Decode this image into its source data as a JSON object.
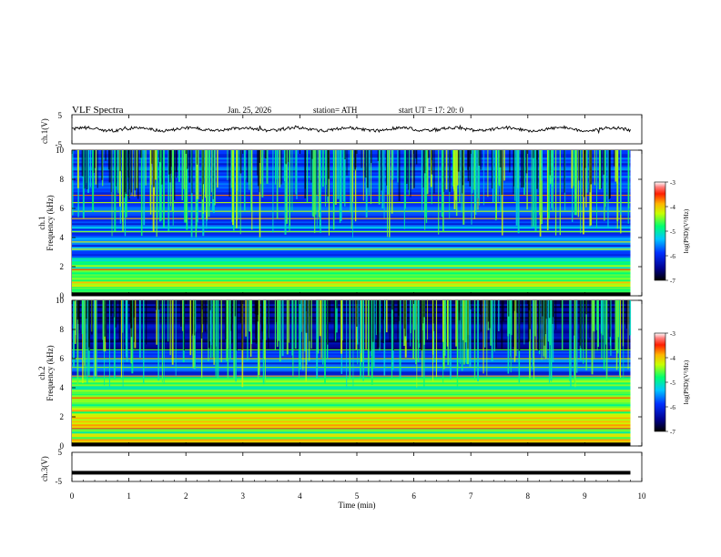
{
  "header": {
    "title": "VLF  Spectra",
    "date": "Jan. 25, 2026",
    "station": "station= ATH",
    "start": "start  UT  =   17: 20: 0"
  },
  "chart_data": [
    {
      "type": "line",
      "panel": "waveform-ch1",
      "ylabel": "ch.1(V)",
      "ylim": [
        -5,
        5
      ],
      "ytick_labels": [
        "5",
        "-5"
      ],
      "xlim": [
        0,
        10
      ],
      "color": "#000000"
    },
    {
      "type": "heatmap",
      "panel": "spectrogram-ch1",
      "ylabel": [
        "ch.1",
        "Frequency  (kHz)"
      ],
      "ylim": [
        0,
        10
      ],
      "yticks": [
        0,
        2,
        4,
        6,
        8,
        10
      ],
      "xlim": [
        0,
        10
      ],
      "x_data_end": 9.8,
      "colorbar": {
        "label": "log(PSD)(V²/Hz)",
        "range": [
          -7,
          -3
        ],
        "ticks": [
          -3,
          -4,
          -5,
          -6,
          -7
        ],
        "tick_labels": [
          "-3",
          "-4",
          "-5",
          "-6",
          "-7"
        ]
      }
    },
    {
      "type": "heatmap",
      "panel": "spectrogram-ch2",
      "ylabel": [
        "ch.2",
        "Frequency  (kHz)"
      ],
      "ylim": [
        0,
        10
      ],
      "yticks": [
        0,
        2,
        4,
        6,
        8,
        10
      ],
      "xlim": [
        0,
        10
      ],
      "x_data_end": 9.8,
      "colorbar": {
        "label": "log(PSD)(V²/Hz)",
        "range": [
          -7,
          -3
        ],
        "ticks": [
          -3,
          -4,
          -5,
          -6,
          -7
        ],
        "tick_labels": [
          "-3",
          "-4",
          "-5",
          "-6",
          "-7"
        ]
      }
    },
    {
      "type": "line",
      "panel": "waveform-ch3",
      "ylabel": "ch.3(V)",
      "ylim": [
        -5,
        5
      ],
      "ytick_labels": [
        "5",
        "-5"
      ],
      "xlim": [
        0,
        10
      ],
      "approx_value": -2,
      "color": "#000000"
    }
  ],
  "x_axis": {
    "label": "Time  (min)",
    "ticks": [
      0,
      1,
      2,
      3,
      4,
      5,
      6,
      7,
      8,
      9,
      10
    ],
    "tick_labels": [
      "0",
      "1",
      "2",
      "3",
      "4",
      "5",
      "6",
      "7",
      "8",
      "9",
      "10"
    ]
  }
}
